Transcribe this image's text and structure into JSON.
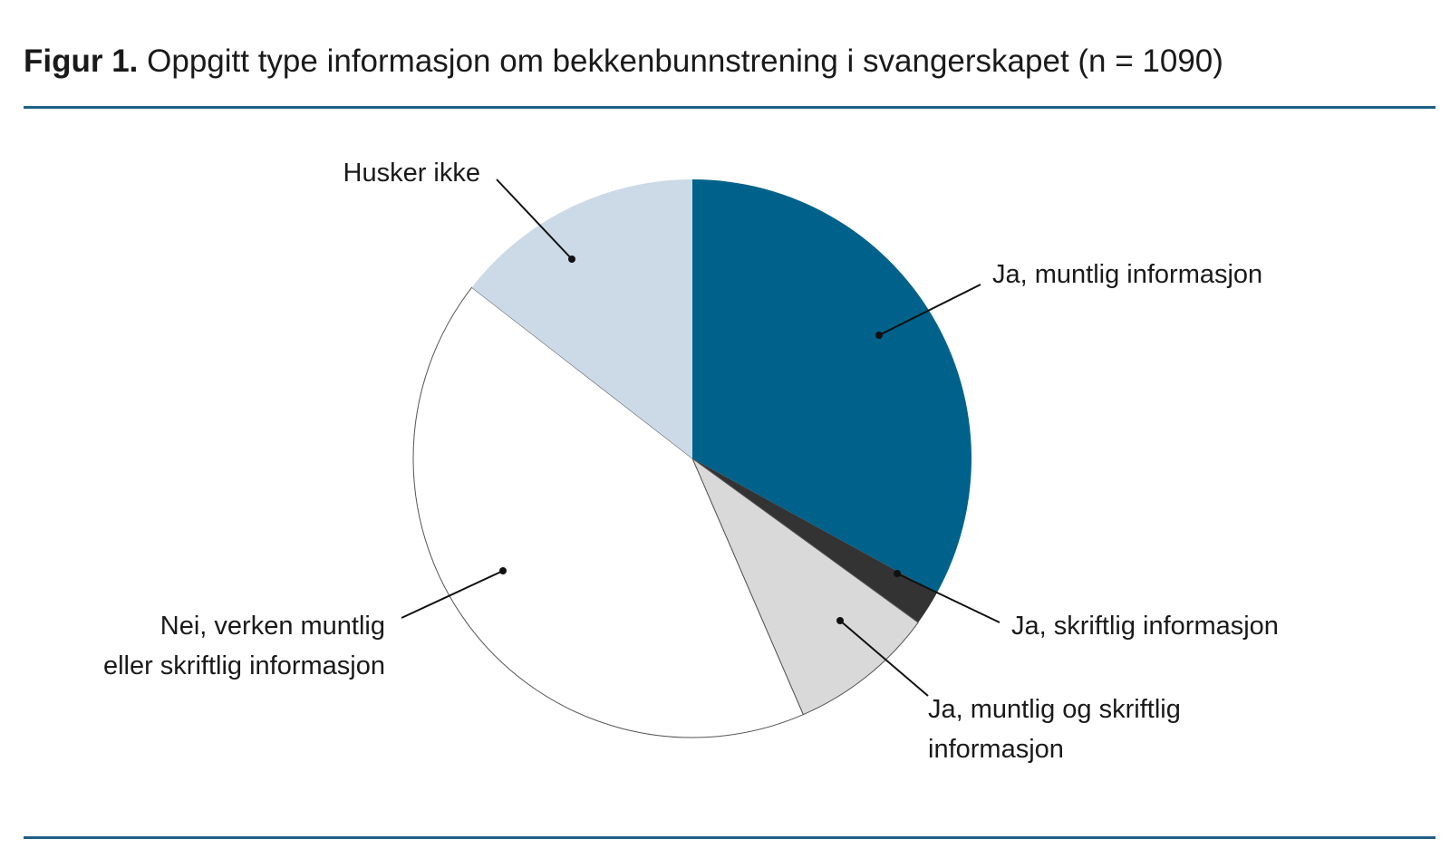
{
  "header": {
    "figure_label": "Figur 1.",
    "title_text": "Oppgitt type informasjon om bekkenbunnstrening i svangerskapet (n = 1090)"
  },
  "colors": {
    "rule": "#1f5f86",
    "leader": "#111111"
  },
  "chart_data": {
    "type": "pie",
    "start_angle_deg": 0,
    "direction": "clockwise",
    "slices": [
      {
        "label": [
          "Ja, muntlig informasjon"
        ],
        "value": 33.0,
        "color": "#00628b",
        "stroke": "none"
      },
      {
        "label": [
          "Ja, skriftlig informasjon"
        ],
        "value": 2.0,
        "color": "#333333",
        "stroke": "none"
      },
      {
        "label": [
          "Ja, muntlig og skriftlig",
          "informasjon"
        ],
        "value": 8.5,
        "color": "#d9d9d9",
        "stroke": "#555555"
      },
      {
        "label": [
          "Nei, verken muntlig",
          "eller skriftlig informasjon"
        ],
        "value": 42.0,
        "color": "#ffffff",
        "stroke": "#555555"
      },
      {
        "label": [
          "Husker ikke"
        ],
        "value": 14.5,
        "color": "#ccdae7",
        "stroke": "none"
      }
    ]
  }
}
